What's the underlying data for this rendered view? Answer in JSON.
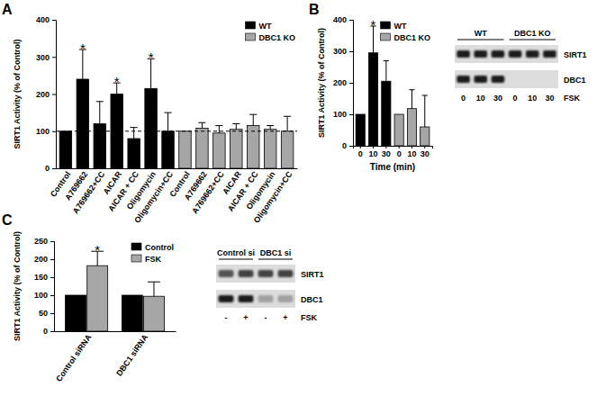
{
  "chart_data": [
    {
      "type": "bar",
      "title": "A",
      "y_label": "SIRT1 Activity (% of Control)",
      "categories": [
        "Control",
        "A769662",
        "A769662+CC",
        "AICAR",
        "AICAR + CC",
        "Oligomycin",
        "Oligomycin+CC",
        "Control",
        "A769662",
        "A769662+CC",
        "AICAR",
        "AICAR + CC",
        "Oligomycin",
        "Oligomycin+CC"
      ],
      "series": [
        {
          "name": "WT",
          "color": "#000000",
          "values": [
            100,
            240,
            120,
            200,
            80,
            215,
            100,
            null,
            null,
            null,
            null,
            null,
            null,
            null
          ],
          "errors": [
            null,
            80,
            60,
            30,
            30,
            80,
            50,
            null,
            null,
            null,
            null,
            null,
            null,
            null
          ],
          "annotations": [
            null,
            "*",
            null,
            "*",
            null,
            "*",
            null,
            null,
            null,
            null,
            null,
            null,
            null,
            null
          ]
        },
        {
          "name": "DBC1 KO",
          "color": "#a6a6a6",
          "values": [
            null,
            null,
            null,
            null,
            null,
            null,
            null,
            100,
            108,
            95,
            105,
            115,
            105,
            100
          ],
          "errors": [
            null,
            null,
            null,
            null,
            null,
            null,
            null,
            null,
            15,
            20,
            15,
            30,
            10,
            40
          ]
        }
      ],
      "ylim": [
        0,
        400
      ],
      "yticks": [
        0,
        100,
        200,
        300,
        400
      ],
      "baseline": 100,
      "legend": "upper right"
    },
    {
      "type": "bar",
      "title": "B",
      "y_label": "SIRT1 Activity (% of Control)",
      "x_label": "Time (min)",
      "categories": [
        "0",
        "10",
        "30",
        "0",
        "10",
        "30"
      ],
      "series": [
        {
          "name": "WT",
          "color": "#000000",
          "values": [
            100,
            295,
            205,
            null,
            null,
            null
          ],
          "errors": [
            null,
            85,
            65,
            null,
            null,
            null
          ],
          "annotations": [
            null,
            "*",
            null,
            null,
            null,
            null
          ]
        },
        {
          "name": "DBC1 KO",
          "color": "#a6a6a6",
          "values": [
            null,
            null,
            null,
            100,
            118,
            60
          ],
          "errors": [
            null,
            null,
            null,
            null,
            60,
            100
          ]
        }
      ],
      "ylim": [
        0,
        400
      ],
      "yticks": [
        0,
        100,
        200,
        300,
        400
      ],
      "legend": "upper right"
    },
    {
      "type": "blot",
      "groups": [
        "WT",
        "DBC1 KO"
      ],
      "lanes": [
        "0",
        "10",
        "30",
        "0",
        "10",
        "30"
      ],
      "lane_label": "FSK",
      "rows": [
        {
          "name": "SIRT1",
          "bands": [
            1,
            1,
            1,
            1,
            1,
            1
          ]
        },
        {
          "name": "DBC1",
          "bands": [
            1,
            1,
            1,
            0,
            0,
            0
          ]
        }
      ]
    },
    {
      "type": "bar",
      "title": "C",
      "y_label": "SIRT1 Activity (% of Control)",
      "categories": [
        "Control siRNA",
        "DBC1 siRNA"
      ],
      "series": [
        {
          "name": "Control",
          "color": "#000000",
          "values": [
            100,
            100
          ],
          "errors": [
            null,
            null
          ]
        },
        {
          "name": "FSK",
          "color": "#a6a6a6",
          "values": [
            182,
            97
          ],
          "errors": [
            40,
            40
          ],
          "annotations": [
            "*",
            null
          ]
        }
      ],
      "ylim": [
        0,
        250
      ],
      "yticks": [
        0,
        50,
        100,
        150,
        200,
        250
      ],
      "legend": "upper right"
    },
    {
      "type": "blot",
      "groups": [
        "Control si",
        "DBC1 si"
      ],
      "lanes": [
        "-",
        "+",
        "-",
        "+"
      ],
      "lane_label": "FSK",
      "rows": [
        {
          "name": "SIRT1",
          "bands": [
            0.7,
            0.8,
            0.8,
            0.8
          ]
        },
        {
          "name": "DBC1",
          "bands": [
            1,
            1,
            0.3,
            0.3
          ]
        }
      ]
    }
  ]
}
